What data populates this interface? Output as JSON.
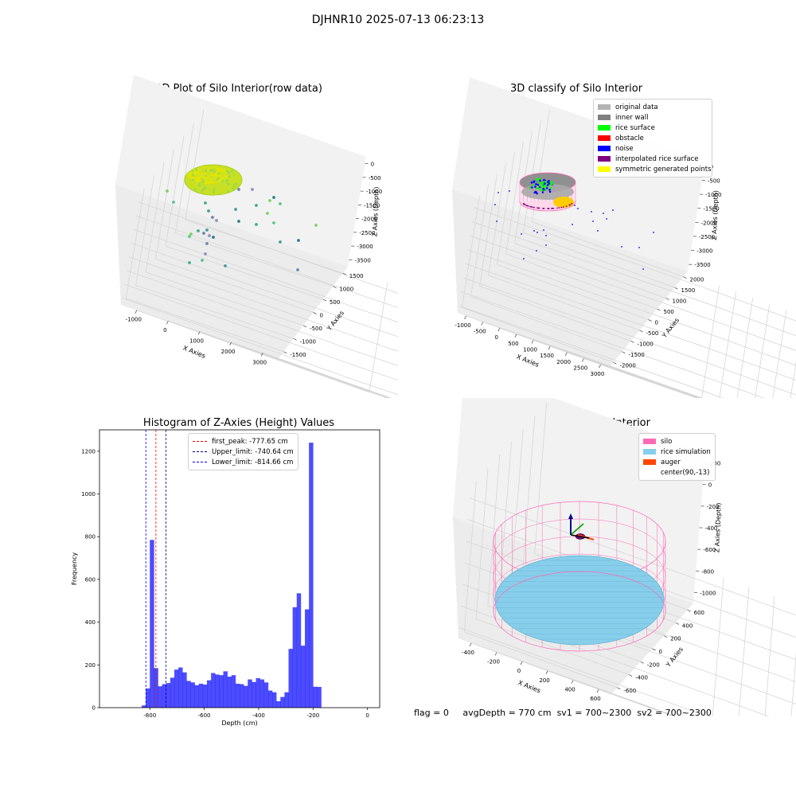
{
  "suptitle": "DJHNR10 2025-07-13 06:23:13",
  "chart_data": [
    {
      "type": "scatter",
      "title": "3D Plot of Silo Interior(row data)",
      "xlabel": "X Axies",
      "ylabel": "Y Axies",
      "zlabel": "Z Axies (Depth)",
      "x_ticks": [
        "-1000",
        "0",
        "1000",
        "2000",
        "3000"
      ],
      "y_ticks": [
        "-1500",
        "-1000",
        "-500",
        "0",
        "500",
        "1000",
        "1500"
      ],
      "z_ticks": [
        "0",
        "-500",
        "-1000",
        "-1500",
        "-2000",
        "-2500",
        "-3000",
        "-3500"
      ]
    },
    {
      "type": "scatter",
      "title": "3D classify of Silo Interior",
      "xlabel": "X Axies",
      "ylabel": "Y Axies",
      "zlabel": "Z Axies (Depth)",
      "x_ticks": [
        "-1000",
        "-500",
        "0",
        "500",
        "1000",
        "1500",
        "2000",
        "2500",
        "3000"
      ],
      "y_ticks": [
        "-2000",
        "-1500",
        "-1000",
        "-500",
        "0",
        "500",
        "1000",
        "1500",
        "2000"
      ],
      "z_ticks": [
        "0",
        "-500",
        "-1000",
        "-1500",
        "-2000",
        "-2500",
        "-3000",
        "-3500"
      ],
      "legend": [
        {
          "label": "original data",
          "color": "#b3b3b3"
        },
        {
          "label": "inner wall",
          "color": "#808080"
        },
        {
          "label": "rice surface",
          "color": "#00ff00"
        },
        {
          "label": "obstacle",
          "color": "#ff0000"
        },
        {
          "label": "noise",
          "color": "#0000ff"
        },
        {
          "label": "interpolated rice surface",
          "color": "#800080"
        },
        {
          "label": "symmetric generated points",
          "color": "#ffff00"
        }
      ]
    },
    {
      "type": "bar",
      "title": "Histogram of Z-Axies (Height) Values",
      "xlabel": "Depth (cm)",
      "ylabel": "Frequency",
      "xlim": [
        -985,
        45
      ],
      "ylim": [
        0,
        1300
      ],
      "x_ticks": [
        -800,
        -600,
        -400,
        -200,
        0
      ],
      "y_ticks": [
        0,
        200,
        400,
        600,
        800,
        1000,
        1200
      ],
      "bin_width": 15,
      "bin_start": -830,
      "values": [
        10,
        90,
        785,
        185,
        100,
        110,
        115,
        140,
        178,
        188,
        165,
        125,
        118,
        105,
        112,
        108,
        128,
        162,
        155,
        152,
        170,
        145,
        152,
        112,
        110,
        102,
        132,
        120,
        138,
        132,
        118,
        80,
        72,
        30,
        50,
        72,
        275,
        470,
        535,
        290,
        460,
        1240,
        98,
        97
      ],
      "color": "#0000ff",
      "vlines": [
        {
          "label": "first_peak: -777.65 cm",
          "x": -777.65,
          "color": "#ff0000"
        },
        {
          "label": "Upper_limit: -740.64 cm",
          "x": -740.64,
          "color": "#00008b"
        },
        {
          "label": "Lower_limit: -814.66 cm",
          "x": -814.66,
          "color": "#0000ff"
        }
      ]
    },
    {
      "type": "scatter",
      "title": "3D simulation of Silo Interior",
      "xlabel": "X Axies",
      "ylabel": "Y Axies",
      "zlabel": "Z Axies (Depth)",
      "x_ticks": [
        "-400",
        "-200",
        "0",
        "200",
        "400",
        "600"
      ],
      "y_ticks": [
        "-600",
        "-400",
        "-200",
        "0",
        "200",
        "400",
        "600"
      ],
      "z_ticks": [
        "200",
        "0",
        "-200",
        "-400",
        "-600",
        "-800",
        "-1000"
      ],
      "legend": [
        {
          "label": "silo",
          "color": "#ff69b4"
        },
        {
          "label": "rice simulation",
          "color": "#87ceeb"
        },
        {
          "label": "auger",
          "color": "#ff4500"
        },
        {
          "label": "center(90,-13)",
          "color": "#ffffff"
        }
      ]
    }
  ],
  "footer": {
    "flag": "flag = 0",
    "avg": "avgDepth = 770 cm",
    "sv1": "sv1 = 700~2300",
    "sv2": "sv2 = 700~2300"
  }
}
